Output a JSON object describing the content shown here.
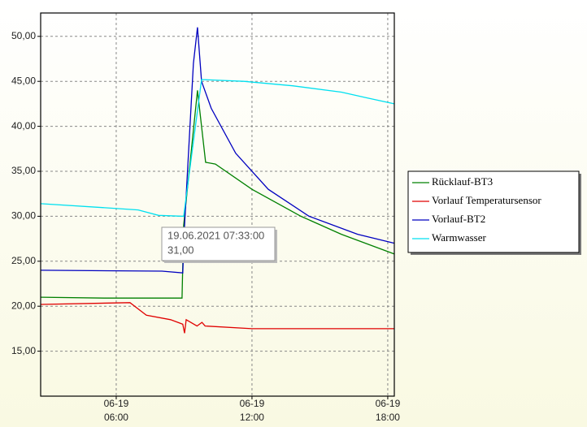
{
  "chart_data": {
    "type": "line",
    "xlim": [
      2.66,
      18.29
    ],
    "ylim": [
      10,
      52.6
    ],
    "xticks": [
      {
        "value": 6,
        "label": "06-19 06:00"
      },
      {
        "value": 12,
        "label": "06-19 12:00"
      },
      {
        "value": 18,
        "label": "06-19 18:00"
      }
    ],
    "yticks": [
      {
        "value": 15,
        "label": "15,00"
      },
      {
        "value": 20,
        "label": "20,00"
      },
      {
        "value": 25,
        "label": "25,00"
      },
      {
        "value": 30,
        "label": "30,00"
      },
      {
        "value": 35,
        "label": "35,00"
      },
      {
        "value": 40,
        "label": "40,00"
      },
      {
        "value": 45,
        "label": "45,00"
      },
      {
        "value": 50,
        "label": "50,00"
      }
    ],
    "grid": true,
    "legend": "right",
    "series": [
      {
        "name": "Rücklauf-BT3",
        "color": "#008000",
        "x": [
          2.66,
          5.5,
          8.91,
          8.98,
          9.59,
          9.95,
          10.38,
          12,
          14.16,
          15.95,
          18.29
        ],
        "values": [
          21.0,
          20.9,
          20.9,
          29,
          44,
          36,
          35.8,
          33,
          30,
          28,
          25.8
        ]
      },
      {
        "name": "Vorlauf Temperatursensor",
        "color": "#e00000",
        "x": [
          2.66,
          6.61,
          7.33,
          8.4,
          8.94,
          9.02,
          9.09,
          9.57,
          9.79,
          9.93,
          12,
          18.29
        ],
        "values": [
          20.2,
          20.4,
          19,
          18.5,
          18,
          17,
          18.5,
          17.8,
          18.2,
          17.8,
          17.5,
          17.5
        ]
      },
      {
        "name": "Vorlauf-BT2",
        "color": "#0000c0",
        "x": [
          2.66,
          8.02,
          8.94,
          9.02,
          9.41,
          9.59,
          9.77,
          10.2,
          11.28,
          12.72,
          14.52,
          16.67,
          18.29
        ],
        "values": [
          24,
          23.9,
          23.7,
          29,
          47,
          51,
          45,
          42,
          37,
          33,
          30,
          28,
          27
        ]
      },
      {
        "name": "Warmwasser",
        "color": "#00e0f0",
        "x": [
          2.66,
          5.17,
          6.97,
          7.87,
          8.98,
          9.77,
          11.64,
          13.8,
          15.95,
          17.03,
          18.29
        ],
        "values": [
          31.4,
          31,
          30.7,
          30.1,
          30,
          45.2,
          45,
          44.5,
          43.8,
          43.2,
          42.5
        ]
      }
    ],
    "annotations": [
      "19.06.2021 07:33:00",
      "31,00"
    ]
  }
}
